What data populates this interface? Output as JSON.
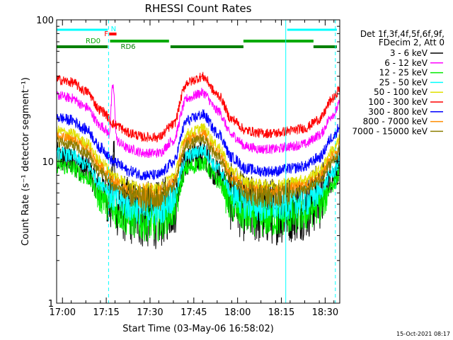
{
  "chart_data": {
    "type": "line",
    "title": "RHESSI Count Rates",
    "xlabel": "Start Time (03-May-06 16:58:02)",
    "ylabel": "Count Rate (s⁻¹ detector segment⁻¹)",
    "yscale": "log",
    "ylim": [
      1,
      100
    ],
    "yticks": [
      {
        "v": 1,
        "label": "1"
      },
      {
        "v": 10,
        "label": "10"
      },
      {
        "v": 100,
        "label": "100"
      }
    ],
    "xlim_minutes": [
      0,
      97
    ],
    "xticks": [
      {
        "m": 2.0,
        "label": "17:00"
      },
      {
        "m": 17.0,
        "label": "17:15"
      },
      {
        "m": 32.0,
        "label": "17:30"
      },
      {
        "m": 47.0,
        "label": "17:45"
      },
      {
        "m": 62.0,
        "label": "18:00"
      },
      {
        "m": 77.0,
        "label": "18:15"
      },
      {
        "m": 92.0,
        "label": "18:30"
      }
    ],
    "grid": false,
    "legend_header": [
      "Det 1f,3f,4f,5f,6f,9f,",
      "FDecim 2, Att 0"
    ],
    "legend_position": "right",
    "series": [
      {
        "name": "3 - 6 keV",
        "color": "#000000",
        "scale": 0.93,
        "noise": 0.11
      },
      {
        "name": "6 - 12 keV",
        "color": "#ff00ff",
        "scale": 2.55,
        "noise": 0.035
      },
      {
        "name": "12 - 25 keV",
        "color": "#00ee00",
        "scale": 0.82,
        "noise": 0.06
      },
      {
        "name": "25 - 50 keV",
        "color": "#00ffff",
        "scale": 1.0,
        "noise": 0.05
      },
      {
        "name": "50 - 100 keV",
        "color": "#e0e000",
        "scale": 1.43,
        "noise": 0.04
      },
      {
        "name": "100 - 300 keV",
        "color": "#ff0000",
        "scale": 3.3,
        "noise": 0.035
      },
      {
        "name": "300 - 800 keV",
        "color": "#0000ff",
        "scale": 1.78,
        "noise": 0.04
      },
      {
        "name": "800 - 7000 keV",
        "color": "#ff8c00",
        "scale": 1.3,
        "noise": 0.04
      },
      {
        "name": "7000 - 15000 keV",
        "color": "#8b7d00",
        "scale": 1.2,
        "noise": 0.04
      }
    ],
    "profile_minutes": [
      0,
      5,
      10,
      15,
      20,
      25,
      30,
      35,
      40,
      45,
      50,
      55,
      60,
      65,
      70,
      75,
      80,
      85,
      90,
      95,
      97
    ],
    "profile_base": [
      11.5,
      11,
      9.5,
      7,
      5.5,
      4.8,
      4.5,
      4.5,
      5.5,
      11,
      12,
      9,
      6,
      5,
      4.8,
      4.8,
      5,
      5.2,
      6,
      8.5,
      10
    ],
    "state_bars": [
      {
        "label": "",
        "color": "#00ffff",
        "row": "top",
        "segments": [
          [
            0,
            17.5
          ],
          [
            79,
            96
          ]
        ]
      },
      {
        "label": "F",
        "color": "#ff0000",
        "row": "upper",
        "segments": [
          [
            18,
            20.5
          ]
        ]
      },
      {
        "label": "N",
        "color": "#00ffff",
        "row": "label",
        "segments": []
      },
      {
        "label": "RD0",
        "color": "#00aa00",
        "row": "mid",
        "segments": [
          [
            18.3,
            38.5
          ],
          [
            64,
            88
          ]
        ]
      },
      {
        "label": "RD6",
        "color": "#008000",
        "row": "low",
        "segments": [
          [
            0,
            17.5
          ],
          [
            39,
            64
          ],
          [
            88,
            96
          ]
        ]
      }
    ],
    "vlines": [
      {
        "m": 17.8,
        "style": "dashed",
        "color": "#00ffff"
      },
      {
        "m": 78.5,
        "style": "solid",
        "color": "#00ffff"
      },
      {
        "m": 95.5,
        "style": "dashed",
        "color": "#00ffff"
      }
    ]
  },
  "footer_timestamp": "15-Oct-2021 08:17"
}
